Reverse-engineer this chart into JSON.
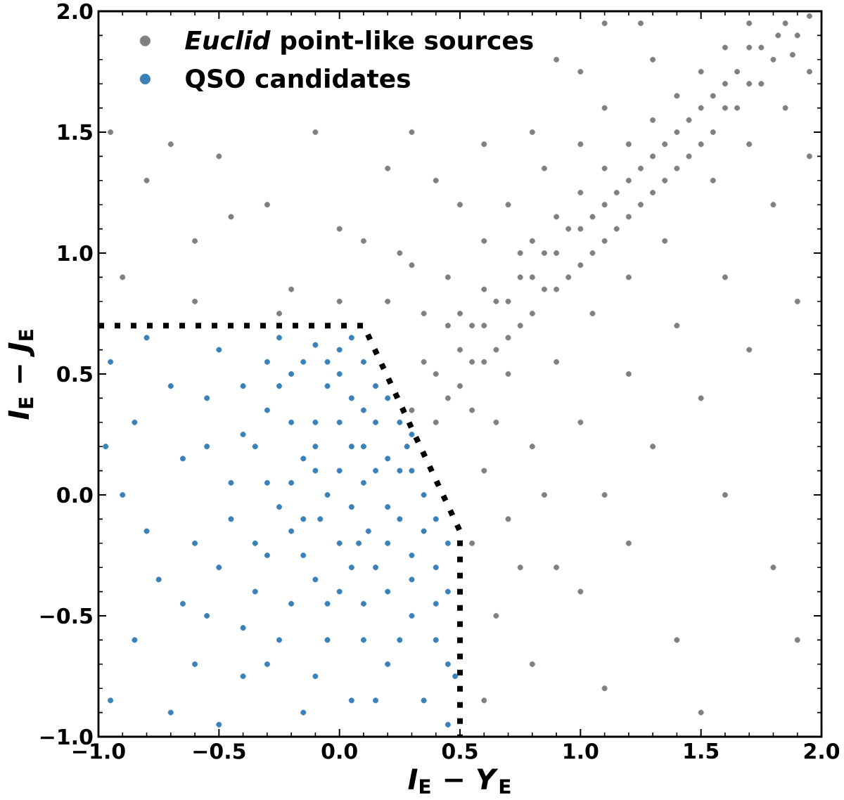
{
  "chart_data": {
    "type": "scatter",
    "xlabel": "*I*$_{E}$ − *Y*$_{E}$",
    "ylabel": "*I*$_{E}$ − *J*$_{E}$",
    "xlim": [
      -1,
      2
    ],
    "ylim": [
      -1,
      2
    ],
    "xticks": [
      {
        "value": -1,
        "label": "−1.0"
      },
      {
        "value": -0.9,
        "label": null
      },
      {
        "value": -0.8,
        "label": null
      },
      {
        "value": -0.7,
        "label": null
      },
      {
        "value": -0.6,
        "label": null
      },
      {
        "value": -0.5,
        "label": "−0.5"
      },
      {
        "value": -0.4,
        "label": null
      },
      {
        "value": -0.3,
        "label": null
      },
      {
        "value": -0.2,
        "label": null
      },
      {
        "value": -0.1,
        "label": null
      },
      {
        "value": 0,
        "label": "0.0"
      },
      {
        "value": 0.1,
        "label": null
      },
      {
        "value": 0.2,
        "label": null
      },
      {
        "value": 0.3,
        "label": null
      },
      {
        "value": 0.4,
        "label": null
      },
      {
        "value": 0.5,
        "label": "0.5"
      },
      {
        "value": 0.6,
        "label": null
      },
      {
        "value": 0.7,
        "label": null
      },
      {
        "value": 0.8,
        "label": null
      },
      {
        "value": 0.9,
        "label": null
      },
      {
        "value": 1,
        "label": "1.0"
      },
      {
        "value": 1.1,
        "label": null
      },
      {
        "value": 1.2,
        "label": null
      },
      {
        "value": 1.3,
        "label": null
      },
      {
        "value": 1.4,
        "label": null
      },
      {
        "value": 1.5,
        "label": "1.5"
      },
      {
        "value": 1.6,
        "label": null
      },
      {
        "value": 1.7,
        "label": null
      },
      {
        "value": 1.8,
        "label": null
      },
      {
        "value": 1.9,
        "label": null
      },
      {
        "value": 2,
        "label": "2.0"
      }
    ],
    "yticks": [
      {
        "value": -1,
        "label": "−1.0"
      },
      {
        "value": -0.9,
        "label": null
      },
      {
        "value": -0.8,
        "label": null
      },
      {
        "value": -0.7,
        "label": null
      },
      {
        "value": -0.6,
        "label": null
      },
      {
        "value": -0.5,
        "label": "−0.5"
      },
      {
        "value": -0.4,
        "label": null
      },
      {
        "value": -0.3,
        "label": null
      },
      {
        "value": -0.2,
        "label": null
      },
      {
        "value": -0.1,
        "label": null
      },
      {
        "value": 0,
        "label": "0.0"
      },
      {
        "value": 0.1,
        "label": null
      },
      {
        "value": 0.2,
        "label": null
      },
      {
        "value": 0.3,
        "label": null
      },
      {
        "value": 0.4,
        "label": null
      },
      {
        "value": 0.5,
        "label": "0.5"
      },
      {
        "value": 0.6,
        "label": null
      },
      {
        "value": 0.7,
        "label": null
      },
      {
        "value": 0.8,
        "label": null
      },
      {
        "value": 0.9,
        "label": null
      },
      {
        "value": 1,
        "label": "1.0"
      },
      {
        "value": 1.1,
        "label": null
      },
      {
        "value": 1.2,
        "label": null
      },
      {
        "value": 1.3,
        "label": null
      },
      {
        "value": 1.4,
        "label": null
      },
      {
        "value": 1.5,
        "label": "1.5"
      },
      {
        "value": 1.6,
        "label": null
      },
      {
        "value": 1.7,
        "label": null
      },
      {
        "value": 1.8,
        "label": null
      },
      {
        "value": 1.9,
        "label": null
      },
      {
        "value": 2,
        "label": "2.0"
      }
    ],
    "legend": "top left",
    "marker": "circle",
    "series": [
      {
        "name": "*Euclid* point-like sources",
        "color": "#808080",
        "x": [
          0.3,
          0.4,
          0.5,
          0.55,
          0.6,
          0.65,
          0.7,
          0.75,
          0.8,
          0.85,
          0.9,
          0.95,
          1.0,
          1.05,
          1.1,
          1.15,
          1.2,
          1.25,
          1.3,
          1.35,
          1.4,
          1.45,
          1.5,
          1.55,
          1.6,
          1.65,
          1.7,
          1.75,
          1.8,
          1.85,
          1.9,
          1.95,
          0.45,
          0.5,
          0.6,
          0.7,
          0.75,
          0.8,
          0.9,
          1.0,
          1.1,
          1.2,
          1.3,
          1.4,
          1.5,
          1.6,
          1.7,
          0.4,
          0.55,
          0.35,
          0.45,
          0.6,
          0.7,
          0.85,
          0.65,
          0.9,
          1.05,
          1.2,
          1.35,
          1.55,
          0.2,
          0.5,
          0.8,
          1.1,
          1.3,
          1.0,
          0.25,
          1.7,
          1.85,
          1.95,
          0.6,
          0.7,
          0.8,
          0.9,
          1.0,
          1.1,
          1.2,
          1.3,
          1.4,
          1.5,
          1.6,
          1.7,
          1.8,
          1.9,
          1.95,
          0.65,
          0.8,
          1.0,
          1.2,
          1.4,
          1.6,
          1.8,
          0.6,
          1.1,
          1.5,
          1.9,
          0.55,
          0.75,
          0.85,
          -0.9,
          -0.8,
          -0.7,
          -0.6,
          -0.5,
          -0.3,
          -0.2,
          -0.1,
          0.0,
          0.2,
          0.3,
          0.4,
          0.6,
          0.9,
          1.1,
          -0.6,
          0.0,
          0.3,
          -0.45,
          -0.95,
          0.1,
          -0.25,
          1.0,
          1.25,
          0.35,
          0.45,
          0.5,
          0.55,
          0.6,
          0.65,
          0.7,
          0.75,
          0.8,
          0.85,
          0.9,
          0.95,
          1.0,
          1.05,
          1.1,
          1.15,
          1.2,
          1.25,
          1.3,
          1.35,
          1.4,
          1.45,
          1.5,
          1.55,
          1.6,
          1.65,
          1.7,
          1.75,
          1.82,
          1.88
        ],
        "values": [
          0.35,
          0.5,
          0.45,
          0.7,
          0.55,
          0.8,
          0.65,
          0.9,
          0.75,
          1.0,
          0.85,
          1.1,
          0.95,
          1.15,
          1.05,
          1.25,
          1.15,
          1.35,
          1.25,
          1.45,
          1.35,
          1.55,
          1.45,
          1.65,
          1.6,
          1.75,
          1.7,
          1.85,
          1.8,
          1.95,
          1.9,
          1.98,
          0.7,
          0.6,
          0.85,
          0.5,
          1.0,
          0.9,
          1.0,
          1.1,
          1.2,
          1.3,
          1.4,
          1.5,
          1.6,
          1.7,
          1.85,
          0.3,
          0.35,
          0.75,
          0.9,
          1.05,
          1.2,
          1.35,
          0.3,
          0.55,
          0.75,
          0.9,
          1.05,
          1.3,
          0.8,
          1.2,
          1.5,
          1.6,
          1.8,
          1.45,
          1.0,
          1.45,
          1.6,
          1.75,
          0.1,
          -0.1,
          0.2,
          -0.3,
          0.3,
          0.0,
          0.5,
          0.2,
          0.7,
          0.4,
          0.9,
          0.6,
          1.2,
          0.8,
          1.4,
          -0.5,
          -0.7,
          -0.4,
          -0.2,
          -0.6,
          0.0,
          -0.3,
          -0.85,
          -0.8,
          -0.9,
          -0.6,
          -0.2,
          -0.3,
          0.0,
          0.9,
          1.3,
          1.45,
          1.05,
          1.4,
          1.2,
          0.85,
          1.5,
          1.1,
          1.35,
          1.5,
          1.3,
          1.45,
          1.8,
          1.95,
          0.8,
          0.8,
          0.95,
          1.15,
          1.5,
          1.05,
          0.75,
          1.75,
          1.95,
          0.55,
          0.4,
          0.75,
          0.55,
          0.7,
          0.6,
          0.8,
          0.7,
          1.05,
          0.85,
          1.15,
          0.9,
          1.25,
          1.0,
          1.35,
          1.1,
          1.45,
          1.2,
          1.55,
          1.3,
          1.65,
          1.4,
          1.75,
          1.5,
          1.85,
          1.6,
          1.95,
          1.7,
          1.9,
          1.82
        ]
      },
      {
        "name": "QSO candidates",
        "color": "#3a80b9",
        "x": [
          0.0,
          0.1,
          0.2,
          0.15,
          0.05,
          -0.05,
          -0.1,
          0.25,
          0.3,
          0.35,
          0.4,
          0.2,
          0.1,
          -0.05,
          -0.15,
          -0.2,
          -0.3,
          0.0,
          0.15,
          0.3,
          0.45,
          0.4,
          0.3,
          0.2,
          0.1,
          -0.1,
          -0.2,
          -0.3,
          -0.4,
          -0.5,
          -0.45,
          -0.35,
          -0.25,
          -0.05,
          0.05,
          0.35,
          0.45,
          -0.15,
          -0.4,
          -0.55,
          -0.6,
          -0.65,
          -0.7,
          -0.8,
          -0.85,
          -0.9,
          -0.75,
          -0.85,
          -0.95,
          -0.7,
          -0.5,
          -0.95,
          -0.55,
          -0.25,
          0.05,
          0.2,
          0.45,
          0.48,
          -0.1,
          0.12,
          -0.3,
          -0.6,
          -0.8,
          -0.97,
          -0.2,
          0.28,
          0.0,
          -0.1,
          0.1,
          0.05,
          -0.15,
          0.2,
          0.1,
          -0.2,
          -0.25,
          -0.15,
          -0.05,
          0.05,
          0.15,
          0.25,
          0.1,
          0.0,
          -0.1,
          -0.2,
          -0.35,
          -0.3,
          -0.4,
          0.15,
          0.3,
          0.25,
          0.35,
          0.3,
          0.4,
          0.2,
          0.05,
          -0.05,
          -0.15,
          -0.25,
          -0.35,
          -0.45,
          -0.5,
          -0.4,
          -0.3,
          -0.1,
          0.0,
          0.25,
          0.4,
          0.45,
          0.15,
          -0.55,
          -0.65,
          0.0,
          0.08,
          -0.08
        ],
        "values": [
          0.6,
          0.55,
          0.4,
          0.3,
          0.2,
          0.45,
          0.3,
          0.1,
          0.25,
          0.0,
          -0.1,
          -0.05,
          0.05,
          0.0,
          0.15,
          0.5,
          0.35,
          -0.2,
          -0.3,
          -0.25,
          -0.4,
          -0.6,
          -0.5,
          -0.7,
          -0.45,
          -0.35,
          -0.15,
          0.05,
          0.25,
          0.6,
          -0.1,
          -0.4,
          -0.6,
          -0.6,
          -0.85,
          -0.85,
          -0.95,
          -0.9,
          -0.75,
          -0.5,
          -0.2,
          0.15,
          0.45,
          0.65,
          0.3,
          0.0,
          -0.35,
          -0.6,
          -0.85,
          -0.9,
          -0.95,
          0.55,
          0.4,
          0.65,
          0.4,
          0.15,
          -0.2,
          -0.75,
          0.62,
          -0.15,
          -0.25,
          -0.7,
          -0.15,
          0.2,
          0.3,
          0.2,
          0.3,
          0.1,
          0.35,
          -0.05,
          -0.1,
          -0.2,
          -0.6,
          -0.45,
          0.45,
          0.55,
          0.55,
          0.65,
          0.45,
          0.3,
          0.2,
          0.1,
          0.2,
          0.05,
          0.2,
          0.55,
          0.45,
          0.1,
          0.1,
          -0.1,
          -0.15,
          -0.35,
          -0.3,
          -0.4,
          -0.3,
          -0.45,
          -0.25,
          -0.05,
          -0.2,
          0.05,
          -0.3,
          -0.55,
          -0.7,
          -0.75,
          -0.4,
          -0.6,
          -0.45,
          -0.7,
          -0.85,
          0.2,
          -0.45,
          0.5,
          -0.2,
          -0.1
        ]
      },
      {
        "type": "line",
        "color": "#000000",
        "line_style": "dotted",
        "marker": "none",
        "x": [
          -1,
          0.1,
          0.5,
          0.5
        ],
        "values": [
          0.7,
          0.7,
          -0.15,
          -1
        ]
      }
    ]
  }
}
